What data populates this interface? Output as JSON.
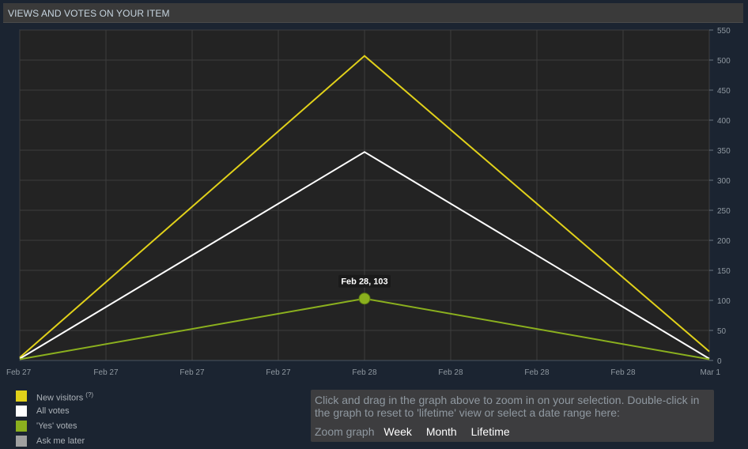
{
  "header": {
    "title": "VIEWS AND VOTES ON YOUR ITEM"
  },
  "chart_data": {
    "type": "line",
    "x": [
      "Feb 27",
      "Feb 28",
      "Mar 1"
    ],
    "x_tick_labels": [
      "Feb 27",
      "Feb 27",
      "Feb 27",
      "Feb 27",
      "Feb 28",
      "Feb 28",
      "Feb 28",
      "Feb 28",
      "Mar 1"
    ],
    "y_ticks": [
      0,
      50,
      100,
      150,
      200,
      250,
      300,
      350,
      400,
      450,
      500,
      550
    ],
    "ylim": [
      0,
      550
    ],
    "grid": true,
    "series": [
      {
        "name": "New visitors",
        "color": "#e1d11a",
        "values": [
          5,
          507,
          15
        ]
      },
      {
        "name": "All votes",
        "color": "#ffffff",
        "values": [
          3,
          347,
          3
        ]
      },
      {
        "name": "'Yes' votes",
        "color": "#8bb01e",
        "values": [
          2,
          103,
          2
        ]
      }
    ],
    "highlight": {
      "series": "'Yes' votes",
      "x": "Feb 28",
      "value": 103,
      "label": "Feb 28, 103"
    }
  },
  "legend": {
    "items": [
      {
        "label": "New visitors",
        "color": "#e1d11a",
        "help": "(?)"
      },
      {
        "label": "All votes",
        "color": "#ffffff",
        "help": ""
      },
      {
        "label": "'Yes' votes",
        "color": "#8bb01e",
        "help": ""
      },
      {
        "label": "Ask me later",
        "color": "#a0a0a0",
        "help": ""
      }
    ]
  },
  "zoom": {
    "instructions": "Click and drag in the graph above to zoom in on your selection. Double-click in the graph to reset to 'lifetime' view or select a date range here:",
    "label": "Zoom graph",
    "options": [
      "Week",
      "Month",
      "Lifetime"
    ]
  }
}
